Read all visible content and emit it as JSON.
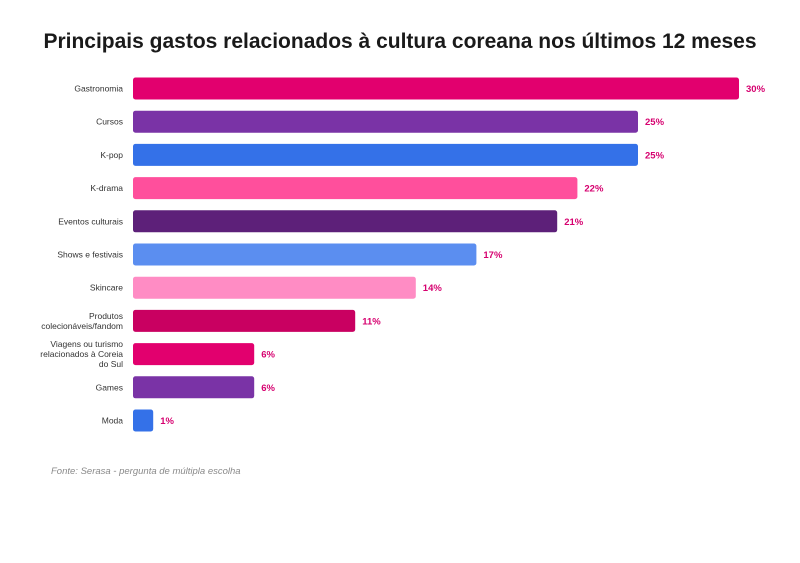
{
  "chart_data": {
    "type": "bar",
    "orientation": "horizontal",
    "title": "Principais gastos relacionados à cultura coreana nos últimos 12 meses",
    "categories": [
      [
        "Gastronomia"
      ],
      [
        "Cursos"
      ],
      [
        "K-pop"
      ],
      [
        "K-drama"
      ],
      [
        "Eventos culturais"
      ],
      [
        "Shows e festivais"
      ],
      [
        "Skincare"
      ],
      [
        "Produtos",
        "colecionáveis/fandom"
      ],
      [
        "Viagens ou turismo",
        "relacionados à Coreia",
        "do Sul"
      ],
      [
        "Games"
      ],
      [
        "Moda"
      ]
    ],
    "values": [
      30,
      25,
      25,
      22,
      21,
      17,
      14,
      11,
      6,
      6,
      1
    ],
    "value_labels": [
      "30%",
      "25%",
      "25%",
      "22%",
      "21%",
      "17%",
      "14%",
      "11%",
      "6%",
      "6%",
      "1%"
    ],
    "unit": "%",
    "colors": [
      "#e2006e",
      "#7a33a6",
      "#3471e8",
      "#ff4f9c",
      "#5d2079",
      "#5b8ef0",
      "#ff8cc4",
      "#c90061",
      "#e2006e",
      "#7a33a6",
      "#3471e8"
    ],
    "value_label_color": "#d6006f",
    "xlim": [
      0,
      30
    ],
    "grid": false,
    "legend": "none"
  },
  "source": "Fonte: Serasa - pergunta de múltipla escolha"
}
